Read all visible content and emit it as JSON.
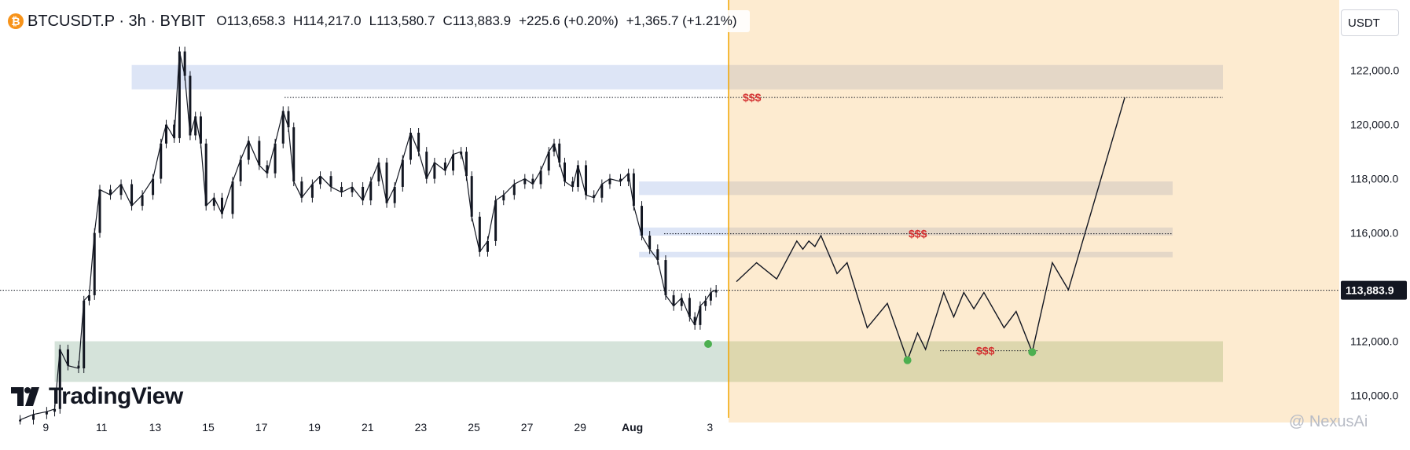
{
  "header": {
    "symbol": "BTCUSDT.P · 3h · BYBIT",
    "open": "O113,658.3",
    "high": "H114,217.0",
    "low": "L113,580.7",
    "close": "C113,883.9",
    "change": "+225.6 (+0.20%)",
    "change2": "+1,365.7 (+1.21%)"
  },
  "currency": "USDT",
  "logo_text": "TradingView",
  "watermark": "@ NexusAi",
  "colors": {
    "candle": "#131722",
    "projection_bg": "#fdebd0",
    "blue_zone": "#dbe4f5",
    "green_zone": "#d3e2d8",
    "divider": "#f0a500",
    "liquidity_label": "#d32f2f",
    "pivot_dot": "#4caf50",
    "price_tag_bg": "#131722"
  },
  "chart_data": {
    "type": "line",
    "title": "BTCUSDT.P · 3h · BYBIT",
    "xlabel": "",
    "ylabel": "",
    "ylim": [
      109000,
      124600
    ],
    "x_ticks": [
      "9",
      "11",
      "13",
      "15",
      "17",
      "19",
      "21",
      "23",
      "25",
      "27",
      "29",
      "Aug",
      "3"
    ],
    "y_ticks": [
      "122,000.0",
      "120,000.0",
      "118,000.0",
      "116,000.0",
      "114,000.0",
      "112,000.0",
      "110,000.0"
    ],
    "y_tick_values": [
      122000,
      120000,
      118000,
      116000,
      114000,
      112000,
      110000
    ],
    "current_price": 113883.9,
    "current_price_label": "113,883.9",
    "price_path": [
      {
        "d": 8.0,
        "p": 109100
      },
      {
        "d": 8.5,
        "p": 109300
      },
      {
        "d": 9.0,
        "p": 109400
      },
      {
        "d": 9.3,
        "p": 109500
      },
      {
        "d": 9.5,
        "p": 111700
      },
      {
        "d": 9.8,
        "p": 111100
      },
      {
        "d": 10.2,
        "p": 111000
      },
      {
        "d": 10.4,
        "p": 113500
      },
      {
        "d": 10.6,
        "p": 113700
      },
      {
        "d": 10.8,
        "p": 116000
      },
      {
        "d": 11.0,
        "p": 117600
      },
      {
        "d": 11.4,
        "p": 117400
      },
      {
        "d": 11.8,
        "p": 117800
      },
      {
        "d": 12.2,
        "p": 117000
      },
      {
        "d": 12.6,
        "p": 117400
      },
      {
        "d": 13.0,
        "p": 118000
      },
      {
        "d": 13.3,
        "p": 119300
      },
      {
        "d": 13.5,
        "p": 120000
      },
      {
        "d": 13.8,
        "p": 119500
      },
      {
        "d": 14.0,
        "p": 122700
      },
      {
        "d": 14.2,
        "p": 121800
      },
      {
        "d": 14.4,
        "p": 119600
      },
      {
        "d": 14.6,
        "p": 120300
      },
      {
        "d": 14.8,
        "p": 119300
      },
      {
        "d": 15.0,
        "p": 117000
      },
      {
        "d": 15.3,
        "p": 117300
      },
      {
        "d": 15.6,
        "p": 116700
      },
      {
        "d": 16.0,
        "p": 117900
      },
      {
        "d": 16.3,
        "p": 118700
      },
      {
        "d": 16.6,
        "p": 119400
      },
      {
        "d": 17.0,
        "p": 118500
      },
      {
        "d": 17.3,
        "p": 118200
      },
      {
        "d": 17.6,
        "p": 119300
      },
      {
        "d": 17.9,
        "p": 120500
      },
      {
        "d": 18.1,
        "p": 119900
      },
      {
        "d": 18.3,
        "p": 117900
      },
      {
        "d": 18.6,
        "p": 117300
      },
      {
        "d": 19.0,
        "p": 117800
      },
      {
        "d": 19.3,
        "p": 118100
      },
      {
        "d": 19.7,
        "p": 117700
      },
      {
        "d": 20.1,
        "p": 117500
      },
      {
        "d": 20.5,
        "p": 117700
      },
      {
        "d": 20.9,
        "p": 117200
      },
      {
        "d": 21.2,
        "p": 117900
      },
      {
        "d": 21.5,
        "p": 118600
      },
      {
        "d": 21.8,
        "p": 117100
      },
      {
        "d": 22.1,
        "p": 117700
      },
      {
        "d": 22.4,
        "p": 118700
      },
      {
        "d": 22.7,
        "p": 119700
      },
      {
        "d": 23.0,
        "p": 119000
      },
      {
        "d": 23.3,
        "p": 118000
      },
      {
        "d": 23.6,
        "p": 118600
      },
      {
        "d": 24.0,
        "p": 118300
      },
      {
        "d": 24.3,
        "p": 118900
      },
      {
        "d": 24.6,
        "p": 119000
      },
      {
        "d": 24.8,
        "p": 118100
      },
      {
        "d": 25.0,
        "p": 116600
      },
      {
        "d": 25.3,
        "p": 115300
      },
      {
        "d": 25.6,
        "p": 115700
      },
      {
        "d": 25.9,
        "p": 117200
      },
      {
        "d": 26.2,
        "p": 117400
      },
      {
        "d": 26.6,
        "p": 117800
      },
      {
        "d": 27.0,
        "p": 118000
      },
      {
        "d": 27.3,
        "p": 117800
      },
      {
        "d": 27.6,
        "p": 118300
      },
      {
        "d": 27.9,
        "p": 119000
      },
      {
        "d": 28.1,
        "p": 119300
      },
      {
        "d": 28.3,
        "p": 118600
      },
      {
        "d": 28.5,
        "p": 117900
      },
      {
        "d": 28.8,
        "p": 117700
      },
      {
        "d": 29.0,
        "p": 118500
      },
      {
        "d": 29.3,
        "p": 117400
      },
      {
        "d": 29.6,
        "p": 117300
      },
      {
        "d": 29.9,
        "p": 117800
      },
      {
        "d": 30.2,
        "p": 118000
      },
      {
        "d": 30.6,
        "p": 117900
      },
      {
        "d": 30.9,
        "p": 118200
      },
      {
        "d": 31.1,
        "p": 117000
      },
      {
        "d": 31.4,
        "p": 115900
      },
      {
        "d": 31.7,
        "p": 115400
      },
      {
        "d": 32.0,
        "p": 115000
      },
      {
        "d": 32.3,
        "p": 113700
      },
      {
        "d": 32.6,
        "p": 113300
      },
      {
        "d": 32.9,
        "p": 113600
      },
      {
        "d": 33.2,
        "p": 112900
      },
      {
        "d": 33.4,
        "p": 112600
      },
      {
        "d": 33.6,
        "p": 113300
      },
      {
        "d": 33.8,
        "p": 113500
      },
      {
        "d": 34.0,
        "p": 113800
      },
      {
        "d": 34.2,
        "p": 113900
      }
    ],
    "annotations": {
      "horizontal_zones": [
        {
          "y_from": 121300,
          "y_to": 122200,
          "color": "blue",
          "d_from": 12.2,
          "d_to": "projection"
        },
        {
          "y_from": 117400,
          "y_to": 117900,
          "color": "blue",
          "d_from": 31.3,
          "d_to": "projection"
        },
        {
          "y_from": 115900,
          "y_to": 116200,
          "color": "blue",
          "d_from": 31.3,
          "d_to": "projection"
        },
        {
          "y_from": 115100,
          "y_to": 115300,
          "color": "blue",
          "d_from": 31.3,
          "d_to": "projection"
        },
        {
          "y_from": 110500,
          "y_to": 112000,
          "color": "green",
          "d_from": 9.3,
          "d_to": "projection"
        }
      ],
      "liquidity_lines": [
        {
          "y": 121000,
          "label": "$$$"
        },
        {
          "y": 115970,
          "label": "$$$"
        },
        {
          "y": 111650,
          "label": "$$$"
        }
      ],
      "projection_path": [
        {
          "i": 0.0,
          "p": 114200
        },
        {
          "i": 1.0,
          "p": 114900
        },
        {
          "i": 2.0,
          "p": 114300
        },
        {
          "i": 3.0,
          "p": 115700
        },
        {
          "i": 3.3,
          "p": 115400
        },
        {
          "i": 3.6,
          "p": 115700
        },
        {
          "i": 3.9,
          "p": 115500
        },
        {
          "i": 4.2,
          "p": 115900
        },
        {
          "i": 5.0,
          "p": 114500
        },
        {
          "i": 5.5,
          "p": 114900
        },
        {
          "i": 6.5,
          "p": 112500
        },
        {
          "i": 7.5,
          "p": 113400
        },
        {
          "i": 8.5,
          "p": 111300
        },
        {
          "i": 9.0,
          "p": 112300
        },
        {
          "i": 9.4,
          "p": 111700
        },
        {
          "i": 10.3,
          "p": 113800
        },
        {
          "i": 10.8,
          "p": 112900
        },
        {
          "i": 11.3,
          "p": 113800
        },
        {
          "i": 11.8,
          "p": 113200
        },
        {
          "i": 12.3,
          "p": 113800
        },
        {
          "i": 13.3,
          "p": 112500
        },
        {
          "i": 13.9,
          "p": 113100
        },
        {
          "i": 14.7,
          "p": 111600
        },
        {
          "i": 15.7,
          "p": 114900
        },
        {
          "i": 16.5,
          "p": 113900
        },
        {
          "i": 19.3,
          "p": 121000
        }
      ],
      "pivot_points": [
        {
          "where": "history",
          "d": 33.9,
          "p": 111900
        },
        {
          "where": "projection",
          "i": 8.5,
          "p": 111300
        },
        {
          "where": "projection",
          "i": 14.7,
          "p": 111600
        }
      ]
    }
  }
}
